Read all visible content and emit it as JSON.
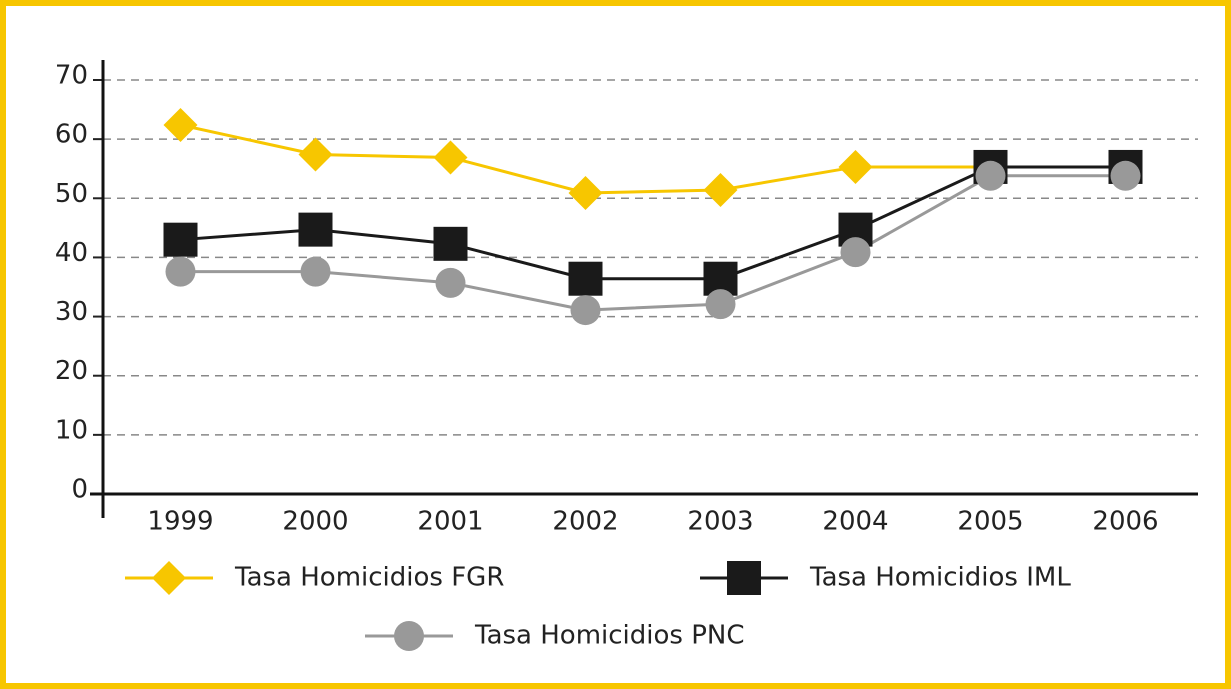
{
  "chart_data": {
    "type": "line",
    "categories": [
      "1999",
      "2000",
      "2001",
      "2002",
      "2003",
      "2004",
      "2005",
      "2006"
    ],
    "series": [
      {
        "name": "Tasa Homicidios FGR",
        "color": "#f7c600",
        "marker": "diamond",
        "values": [
          62.4,
          57.4,
          56.9,
          50.9,
          51.4,
          55.3,
          55.3,
          55.3
        ]
      },
      {
        "name": "Tasa Homicidios IML",
        "color": "#1a1a1a",
        "marker": "square",
        "values": [
          43,
          44.7,
          42.3,
          36.4,
          36.4,
          44.7,
          55.3,
          55.3
        ]
      },
      {
        "name": "Tasa Homicidios PNC",
        "color": "#999999",
        "marker": "circle",
        "values": [
          37.6,
          37.6,
          35.7,
          31.1,
          32.1,
          40.9,
          53.8,
          53.8
        ]
      }
    ],
    "ylim": [
      0,
      70
    ],
    "yticks": [
      0,
      10,
      20,
      30,
      40,
      50,
      60,
      70
    ],
    "grid": true,
    "legend": "bottom"
  }
}
